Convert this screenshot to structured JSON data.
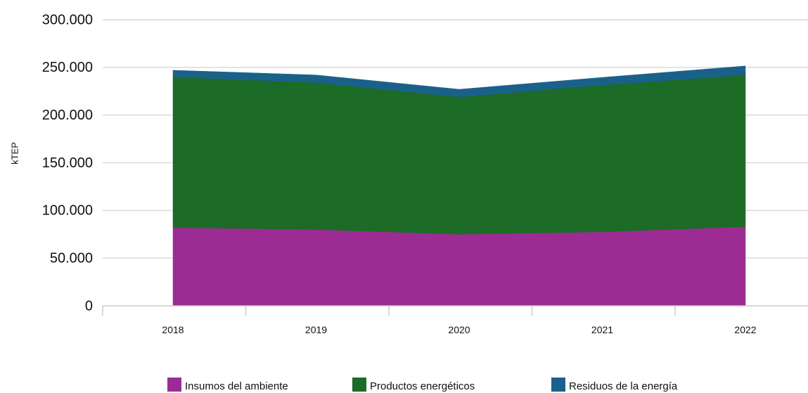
{
  "chart_data": {
    "type": "area",
    "stacked": true,
    "title": "",
    "xlabel": "",
    "ylabel": "kTEP",
    "categories": [
      "2018",
      "2019",
      "2020",
      "2021",
      "2022"
    ],
    "ylim": [
      0,
      300000
    ],
    "yticks": [
      0,
      50000,
      100000,
      150000,
      200000,
      250000,
      300000
    ],
    "ytick_labels": [
      "0",
      "50.000",
      "100.000",
      "150.000",
      "200.000",
      "250.000",
      "300.000"
    ],
    "grid": true,
    "legend_position": "bottom",
    "series": [
      {
        "name": "Insumos del ambiente",
        "color": "#9c2c93",
        "values": [
          82000,
          80000,
          75000,
          77500,
          83000
        ]
      },
      {
        "name": "Productos energéticos",
        "color": "#1c6b26",
        "values": [
          158000,
          154000,
          144000,
          154000,
          159000
        ]
      },
      {
        "name": "Residuos de la energía",
        "color": "#1a6189",
        "values": [
          7000,
          8000,
          8000,
          8000,
          9500
        ]
      }
    ]
  }
}
